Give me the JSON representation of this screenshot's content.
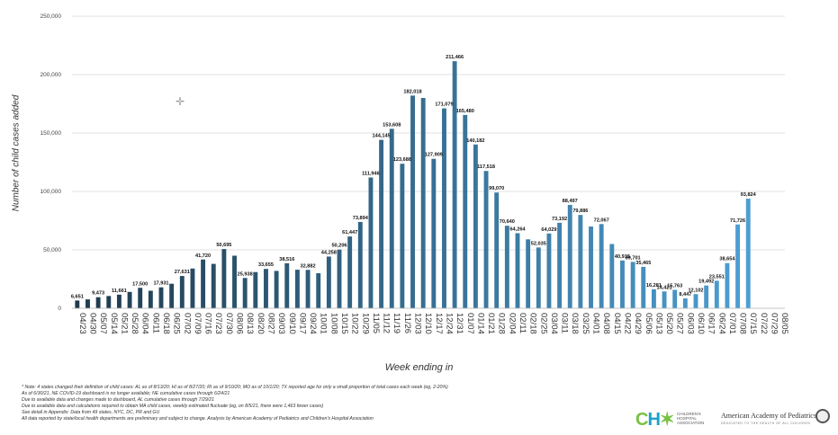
{
  "chart_data": {
    "type": "bar",
    "xlabel": "Week ending in",
    "ylabel": "Number of child cases added",
    "ylim": [
      0,
      250000
    ],
    "yticks": [
      "0",
      "50,000",
      "100,000",
      "150,000",
      "200,000",
      "250,000"
    ],
    "categories": [
      "04/23",
      "04/30",
      "05/07",
      "05/14",
      "05/21",
      "05/28",
      "06/04",
      "06/11",
      "06/18",
      "06/25",
      "07/02",
      "07/09",
      "07/16",
      "07/23",
      "07/30",
      "08/06",
      "08/13",
      "08/20",
      "08/27",
      "09/03",
      "09/10",
      "09/17",
      "09/24",
      "10/01",
      "10/08",
      "10/15",
      "10/22",
      "10/29",
      "11/05",
      "11/12",
      "11/19",
      "11/26",
      "12/03",
      "12/10",
      "12/17",
      "12/24",
      "12/31",
      "01/07",
      "01/14",
      "01/21",
      "01/28",
      "02/04",
      "02/11",
      "02/18",
      "02/25",
      "03/04",
      "03/11",
      "03/18",
      "03/25",
      "04/01",
      "04/08",
      "04/15",
      "04/22",
      "04/29",
      "05/06",
      "05/13",
      "05/20",
      "05/27",
      "06/03",
      "06/10",
      "06/17",
      "06/24",
      "07/01",
      "07/08",
      "07/15",
      "07/22",
      "07/29",
      "08/05"
    ],
    "values": [
      6651,
      7600,
      9473,
      10500,
      11661,
      14000,
      17500,
      15000,
      17931,
      21000,
      27631,
      34000,
      41720,
      38000,
      50695,
      45000,
      25938,
      31000,
      33655,
      32000,
      38516,
      33000,
      32882,
      30000,
      44258,
      50206,
      61447,
      73894,
      111946,
      144145,
      153608,
      123688,
      182018,
      180000,
      127909,
      171079,
      211466,
      165480,
      140182,
      117518,
      99070,
      70640,
      64264,
      59000,
      52035,
      64029,
      73192,
      88497,
      79886,
      70000,
      72067,
      55000,
      40915,
      39701,
      35465,
      16281,
      14421,
      15763,
      8447,
      12102,
      19492,
      23551,
      38654,
      71726,
      93824,
      0,
      0,
      0
    ],
    "data_labels": [
      {
        "i": 0,
        "text": "6,651"
      },
      {
        "i": 2,
        "text": "9,473"
      },
      {
        "i": 4,
        "text": "11,661"
      },
      {
        "i": 6,
        "text": "17,500"
      },
      {
        "i": 8,
        "text": "17,931"
      },
      {
        "i": 10,
        "text": "27,631"
      },
      {
        "i": 12,
        "text": "41,720"
      },
      {
        "i": 14,
        "text": "50,695"
      },
      {
        "i": 16,
        "text": "25,938"
      },
      {
        "i": 18,
        "text": "33,655"
      },
      {
        "i": 20,
        "text": "38,516"
      },
      {
        "i": 22,
        "text": "32,882"
      },
      {
        "i": 24,
        "text": "44,258"
      },
      {
        "i": 25,
        "text": "50,206"
      },
      {
        "i": 26,
        "text": "61,447"
      },
      {
        "i": 27,
        "text": "73,894"
      },
      {
        "i": 28,
        "text": "111,946"
      },
      {
        "i": 29,
        "text": "144,145"
      },
      {
        "i": 30,
        "text": "153,608"
      },
      {
        "i": 31,
        "text": "123,688"
      },
      {
        "i": 32,
        "text": "182,018"
      },
      {
        "i": 34,
        "text": "127,909"
      },
      {
        "i": 35,
        "text": "171,079"
      },
      {
        "i": 36,
        "text": "211,466"
      },
      {
        "i": 37,
        "text": "165,480"
      },
      {
        "i": 38,
        "text": "140,182"
      },
      {
        "i": 39,
        "text": "117,518"
      },
      {
        "i": 40,
        "text": "99,070"
      },
      {
        "i": 41,
        "text": "70,640"
      },
      {
        "i": 42,
        "text": "64,264"
      },
      {
        "i": 44,
        "text": "52,035"
      },
      {
        "i": 45,
        "text": "64,029"
      },
      {
        "i": 46,
        "text": "73,192"
      },
      {
        "i": 47,
        "text": "88,497"
      },
      {
        "i": 48,
        "text": "79,886"
      },
      {
        "i": 50,
        "text": "72,067"
      },
      {
        "i": 52,
        "text": "40,915"
      },
      {
        "i": 53,
        "text": "39,701"
      },
      {
        "i": 54,
        "text": "35,465"
      },
      {
        "i": 55,
        "text": "16,281"
      },
      {
        "i": 56,
        "text": "14,421"
      },
      {
        "i": 57,
        "text": "15,763"
      },
      {
        "i": 58,
        "text": "8,447"
      },
      {
        "i": 59,
        "text": "12,102"
      },
      {
        "i": 60,
        "text": "19,492"
      },
      {
        "i": 61,
        "text": "23,551"
      },
      {
        "i": 62,
        "text": "38,654"
      },
      {
        "i": 63,
        "text": "71,726"
      },
      {
        "i": 64,
        "text": "93,824"
      }
    ],
    "colors": {
      "start": "#1f3a4d",
      "end": "#4fa3d8",
      "grid": "#d9d9d9"
    },
    "grid": true
  },
  "notes": [
    "* Note: 4 states changed their definition of child cases: AL as of 8/13/20; HI as of 8/27/20; RI as of 9/10/20; MO as of 10/1/20; TX reported age for only a small proportion of total cases each week (eg, 2-20%)",
    "As of 6/30/21, NE COVID-19 dashboard is no longer available; NE cumulative cases through 6/24/21",
    "Due to available data and changes made to dashboard, AL cumulative cases through 7/29/21",
    "Due to available data and calculations required to obtain MA child cases, weekly estimated fluctuate (eg, on 8/5/21, there were 1,463 fewer cases)",
    "See detail in Appendix: Data from 49 states, NYC, DC, PR and GU",
    "All data reported by state/local health departments are preliminary and subject to change. Analysis by American Academy of Pediatrics and Children's Hospital Association"
  ],
  "logos": {
    "cha_text": "CHILDREN'S HOSPITAL ASSOCIATION",
    "aap_text": "American Academy of Pediatrics",
    "aap_sub": "DEDICATED TO THE HEALTH OF ALL CHILDREN"
  }
}
